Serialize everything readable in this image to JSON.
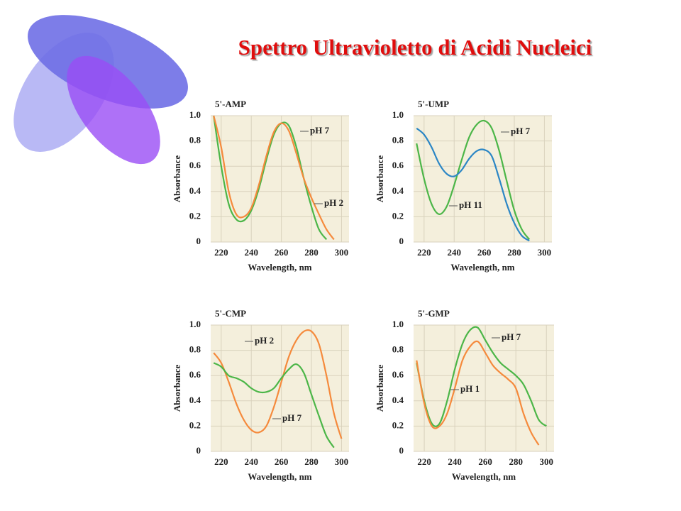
{
  "title": "Spettro Ultravioletto di Acidi Nucleici",
  "chart_data": [
    {
      "type": "line",
      "title": "5'-AMP",
      "x_label": "Wavelength, nm",
      "y_label": "Absorbance",
      "x": [
        215,
        220,
        225,
        230,
        235,
        240,
        245,
        250,
        255,
        260,
        265,
        270,
        275,
        280,
        285,
        290,
        295,
        300
      ],
      "xlim": [
        213,
        305
      ],
      "ylim": [
        0,
        1.0
      ],
      "xticks": [
        220,
        240,
        260,
        280,
        300
      ],
      "yticks": [
        0,
        0.2,
        0.4,
        0.6,
        0.8,
        {
          "value": 1,
          "label": "1.0"
        }
      ],
      "grid": true,
      "series": [
        {
          "name": "pH 7",
          "color": "#4cb648",
          "values": [
            1.0,
            0.6,
            0.3,
            0.18,
            0.17,
            0.25,
            0.42,
            0.65,
            0.85,
            0.94,
            0.92,
            0.75,
            0.5,
            0.28,
            0.1,
            0.02,
            null,
            null
          ]
        },
        {
          "name": "pH 2",
          "color": "#f58a3c",
          "values": [
            1.0,
            0.75,
            0.4,
            0.22,
            0.2,
            0.27,
            0.45,
            0.68,
            0.87,
            0.94,
            0.88,
            0.7,
            0.5,
            0.35,
            0.22,
            0.1,
            0.02,
            null
          ]
        }
      ]
    },
    {
      "type": "line",
      "title": "5'-UMP",
      "x_label": "Wavelength, nm",
      "y_label": "Absorbance",
      "x": [
        215,
        220,
        225,
        230,
        235,
        240,
        245,
        250,
        255,
        260,
        265,
        270,
        275,
        280,
        285,
        290,
        295,
        300
      ],
      "xlim": [
        213,
        305
      ],
      "ylim": [
        0,
        1.0
      ],
      "xticks": [
        220,
        240,
        260,
        280,
        300
      ],
      "yticks": [
        0,
        0.2,
        0.4,
        0.6,
        0.8,
        {
          "value": 1,
          "label": "1.0"
        }
      ],
      "grid": true,
      "series": [
        {
          "name": "pH 7",
          "color": "#4cb648",
          "values": [
            0.78,
            0.5,
            0.3,
            0.22,
            0.28,
            0.45,
            0.65,
            0.83,
            0.93,
            0.96,
            0.9,
            0.72,
            0.48,
            0.25,
            0.1,
            0.02,
            null,
            null
          ]
        },
        {
          "name": "pH 11",
          "color": "#2b86c5",
          "values": [
            0.9,
            0.85,
            0.75,
            0.62,
            0.54,
            0.52,
            0.57,
            0.66,
            0.72,
            0.73,
            0.68,
            0.5,
            0.3,
            0.15,
            0.05,
            0.01,
            null,
            null
          ]
        }
      ]
    },
    {
      "type": "line",
      "title": "5'-CMP",
      "x_label": "Wavelength, nm",
      "y_label": "Absorbance",
      "x": [
        215,
        220,
        225,
        230,
        235,
        240,
        245,
        250,
        255,
        260,
        265,
        270,
        275,
        280,
        285,
        290,
        295,
        300
      ],
      "xlim": [
        213,
        305
      ],
      "ylim": [
        0,
        1.0
      ],
      "xticks": [
        220,
        240,
        260,
        280,
        300
      ],
      "yticks": [
        0,
        0.2,
        0.4,
        0.6,
        0.8,
        {
          "value": 1,
          "label": "1.0"
        }
      ],
      "grid": true,
      "series": [
        {
          "name": "pH 2",
          "color": "#f58a3c",
          "values": [
            0.78,
            0.7,
            0.55,
            0.38,
            0.25,
            0.17,
            0.15,
            0.2,
            0.35,
            0.55,
            0.75,
            0.88,
            0.95,
            0.95,
            0.85,
            0.6,
            0.3,
            0.1
          ]
        },
        {
          "name": "pH 7",
          "color": "#4cb648",
          "values": [
            0.7,
            0.67,
            0.6,
            0.58,
            0.55,
            0.5,
            0.47,
            0.47,
            0.5,
            0.58,
            0.65,
            0.69,
            0.62,
            0.45,
            0.28,
            0.12,
            0.03,
            null
          ]
        }
      ]
    },
    {
      "type": "line",
      "title": "5'-GMP",
      "x_label": "Wavelength, nm",
      "y_label": "Absorbance",
      "x": [
        215,
        220,
        225,
        230,
        235,
        240,
        245,
        250,
        255,
        260,
        265,
        270,
        275,
        280,
        285,
        290,
        295,
        300
      ],
      "xlim": [
        213,
        305
      ],
      "ylim": [
        0,
        1.0
      ],
      "xticks": [
        220,
        240,
        260,
        280,
        300
      ],
      "yticks": [
        0,
        0.2,
        0.4,
        0.6,
        0.8,
        {
          "value": 1,
          "label": "1.0"
        }
      ],
      "grid": true,
      "series": [
        {
          "name": "pH 7",
          "color": "#4cb648",
          "values": [
            0.7,
            0.4,
            0.22,
            0.22,
            0.4,
            0.65,
            0.85,
            0.96,
            0.98,
            0.88,
            0.78,
            0.7,
            0.65,
            0.6,
            0.53,
            0.4,
            0.25,
            0.2
          ]
        },
        {
          "name": "pH 1",
          "color": "#f58a3c",
          "values": [
            0.72,
            0.38,
            0.2,
            0.2,
            0.3,
            0.5,
            0.72,
            0.83,
            0.87,
            0.78,
            0.68,
            0.62,
            0.57,
            0.5,
            0.3,
            0.15,
            0.05,
            null
          ]
        }
      ]
    }
  ]
}
